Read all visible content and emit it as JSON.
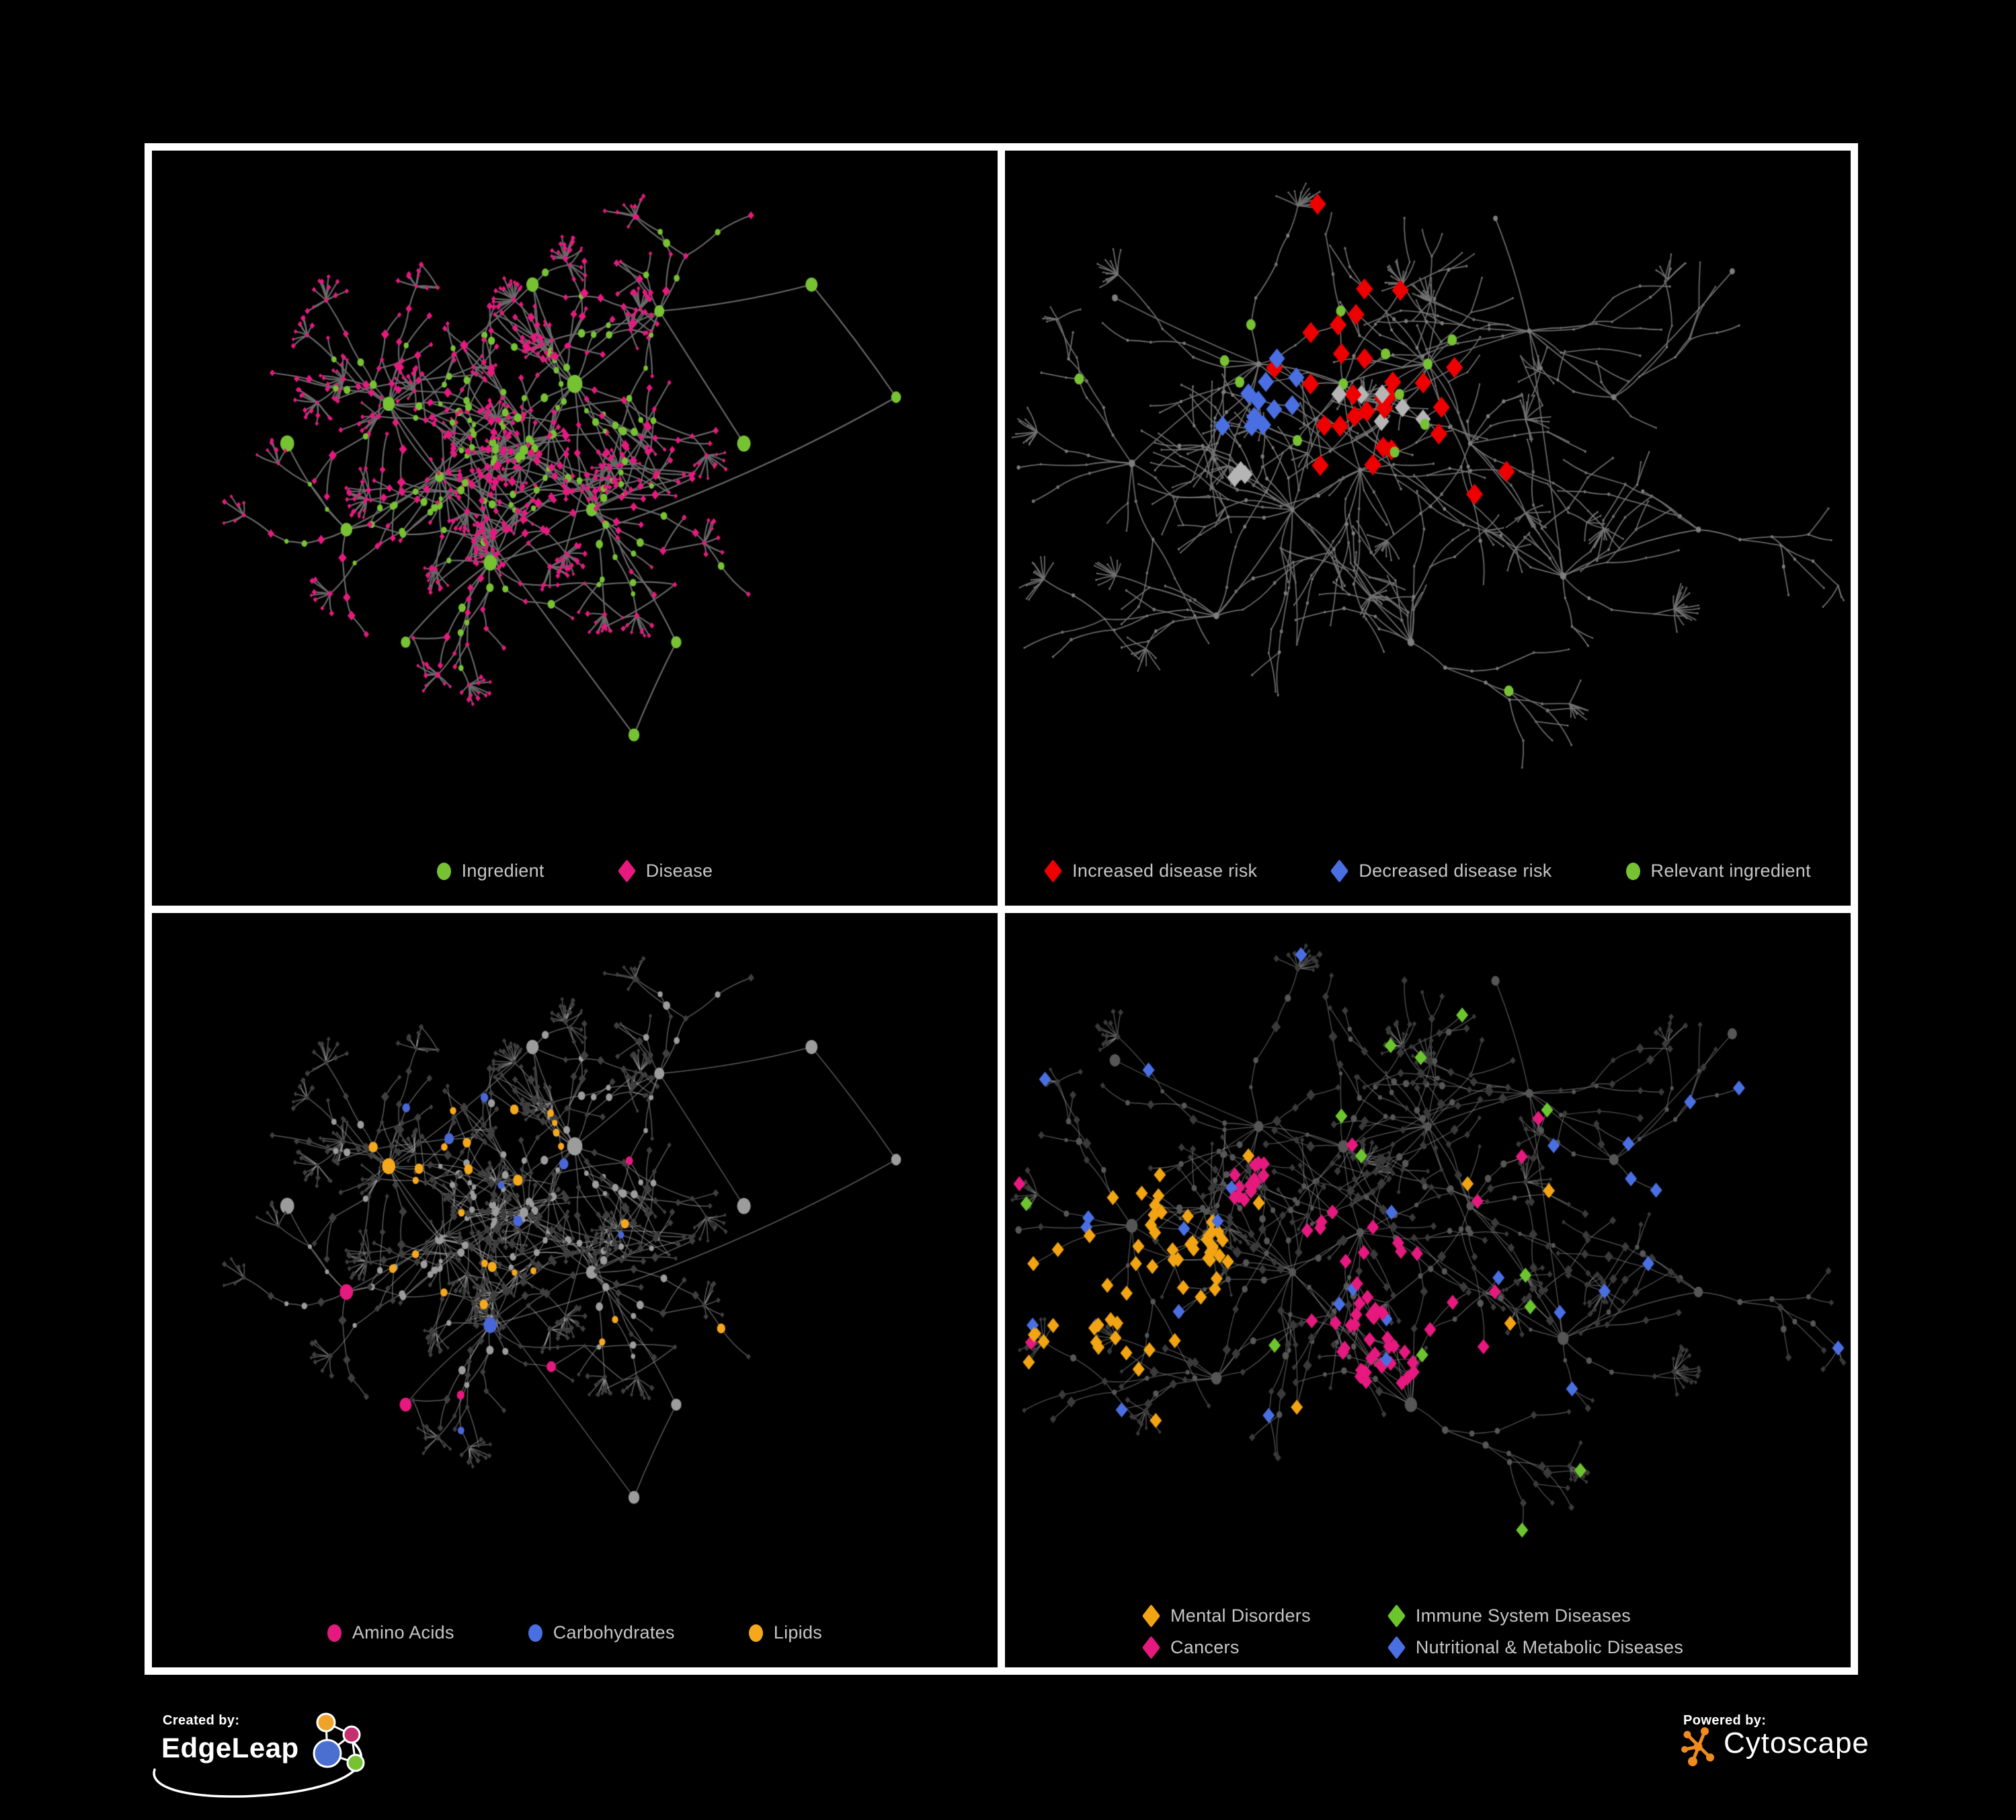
{
  "figure": {
    "background": "#000000",
    "frame_color": "#ffffff",
    "legend_text_color": "#c6c6c6"
  },
  "layouts": {
    "A": {
      "seed": 7,
      "step": 42,
      "branch_min": 5,
      "branch_max": 9,
      "fan_p": 0.2,
      "cross_p": 0.22,
      "hub_boost": 5,
      "budget": 980,
      "hubs": [
        [
          0.44,
          0.43
        ],
        [
          0.34,
          0.47
        ],
        [
          0.5,
          0.33
        ],
        [
          0.4,
          0.6
        ],
        [
          0.28,
          0.36
        ],
        [
          0.52,
          0.52
        ],
        [
          0.23,
          0.55
        ],
        [
          0.6,
          0.22
        ],
        [
          0.45,
          0.18
        ],
        [
          0.7,
          0.42
        ],
        [
          0.62,
          0.72
        ],
        [
          0.3,
          0.72
        ],
        [
          0.16,
          0.42
        ],
        [
          0.78,
          0.18
        ],
        [
          0.88,
          0.35
        ],
        [
          0.57,
          0.86
        ]
      ]
    },
    "B": {
      "seed": 13,
      "step": 46,
      "branch_min": 4,
      "branch_max": 8,
      "fan_p": 0.17,
      "cross_p": 0.14,
      "hub_boost": 3,
      "budget": 900,
      "hubs": [
        [
          0.4,
          0.33
        ],
        [
          0.3,
          0.3
        ],
        [
          0.5,
          0.3
        ],
        [
          0.42,
          0.46
        ],
        [
          0.55,
          0.42
        ],
        [
          0.34,
          0.52
        ],
        [
          0.62,
          0.25
        ],
        [
          0.72,
          0.35
        ],
        [
          0.25,
          0.68
        ],
        [
          0.48,
          0.72
        ],
        [
          0.66,
          0.62
        ],
        [
          0.15,
          0.45
        ],
        [
          0.82,
          0.55
        ],
        [
          0.58,
          0.08
        ],
        [
          0.13,
          0.2
        ],
        [
          0.86,
          0.16
        ]
      ]
    }
  },
  "panels": [
    {
      "name": "ingredient-disease",
      "layout": "A",
      "edge": {
        "color": "#6b6b6b",
        "width": 2.2,
        "alpha": 0.95
      },
      "base": {
        "ingredient": {
          "shape": "circle",
          "color": "#77c232",
          "size_mul": 1.05
        },
        "disease": {
          "shape": "diamond",
          "color": "#e6197f",
          "size_mul": 1.0
        }
      },
      "highlights": [],
      "legend": {
        "columns": 0,
        "items": [
          {
            "label": "Ingredient",
            "shape": "circle",
            "color": "#77c232"
          },
          {
            "label": "Disease",
            "shape": "diamond",
            "color": "#e6197f"
          }
        ]
      }
    },
    {
      "name": "disease-risk",
      "layout": "B",
      "edge": {
        "color": "#747474",
        "width": 1.8,
        "alpha": 0.9
      },
      "base": {
        "ingredient": {
          "shape": "circle",
          "color": "#7d7d7d",
          "size_mul": 0.5
        },
        "disease": {
          "shape": "circle",
          "color": "#6f6f6f",
          "size_mul": 0.45
        }
      },
      "highlights": [
        {
          "target": "disease",
          "shape": "diamond",
          "color": "#ee0000",
          "size": 10.5,
          "max": 34,
          "seed": 21,
          "global_p": 0.004,
          "blobs": [
            [
              0.42,
              0.3,
              0.1,
              0.5
            ],
            [
              0.3,
              0.28,
              0.06,
              0.4
            ],
            [
              0.55,
              0.33,
              0.07,
              0.4
            ],
            [
              0.47,
              0.47,
              0.06,
              0.35
            ],
            [
              0.36,
              0.42,
              0.05,
              0.3
            ],
            [
              0.63,
              0.25,
              0.04,
              0.35
            ],
            [
              0.58,
              0.47,
              0.04,
              0.35
            ],
            [
              0.62,
              0.78,
              0.05,
              0.3
            ],
            [
              0.1,
              0.33,
              0.03,
              0.5
            ],
            [
              0.52,
              0.6,
              0.04,
              0.3
            ]
          ]
        },
        {
          "target": "disease",
          "shape": "diamond",
          "color": "#4a6fe3",
          "size": 10,
          "max": 11,
          "seed": 22,
          "global_p": 0,
          "blobs": [
            [
              0.29,
              0.33,
              0.06,
              0.5
            ],
            [
              0.8,
              0.34,
              0.04,
              1.0
            ]
          ]
        },
        {
          "target": "disease",
          "shape": "diamond",
          "color": "#b5b5b5",
          "size": 9.5,
          "max": 9,
          "seed": 23,
          "global_p": 0.001,
          "blobs": [
            [
              0.24,
              0.26,
              0.05,
              0.35
            ],
            [
              0.44,
              0.37,
              0.05,
              0.22
            ],
            [
              0.52,
              0.42,
              0.04,
              0.25
            ],
            [
              0.3,
              0.47,
              0.04,
              0.3
            ]
          ]
        },
        {
          "target": "ingredient",
          "shape": "circle",
          "color": "#77c232",
          "size": 7,
          "max": 30,
          "seed": 24,
          "global_p": 0.004,
          "blobs": [
            [
              0.35,
              0.3,
              0.1,
              0.4
            ],
            [
              0.5,
              0.33,
              0.09,
              0.35
            ],
            [
              0.24,
              0.14,
              0.06,
              0.35
            ],
            [
              0.52,
              0.44,
              0.06,
              0.3
            ],
            [
              0.78,
              0.36,
              0.05,
              0.35
            ],
            [
              0.12,
              0.35,
              0.04,
              0.4
            ],
            [
              0.56,
              0.78,
              0.04,
              0.35
            ]
          ]
        }
      ],
      "legend": {
        "columns": 0,
        "items": [
          {
            "label": "Increased disease risk",
            "shape": "diamond",
            "color": "#ee0000"
          },
          {
            "label": "Decreased disease risk",
            "shape": "diamond",
            "color": "#4a6fe3"
          },
          {
            "label": "Relevant ingredient",
            "shape": "circle",
            "color": "#77c232"
          }
        ]
      }
    },
    {
      "name": "nutrient-classes",
      "layout": "A",
      "edge": {
        "color": "#b0b0b0",
        "width": 1.5,
        "alpha": 0.5
      },
      "base": {
        "ingredient": {
          "shape": "circle",
          "color": "#9c9c9c",
          "size_mul": 1.05
        },
        "disease": {
          "shape": "diamond",
          "color": "#3f3f3f",
          "size_mul": 1.0
        }
      },
      "highlights": [
        {
          "target": "ingredient",
          "shape": "circle",
          "color": "#f5a81c",
          "size": null,
          "max": 95,
          "seed": 31,
          "global_p": 0.03,
          "blobs": [
            [
              0.35,
              0.2,
              0.1,
              0.8
            ],
            [
              0.3,
              0.4,
              0.08,
              0.5
            ],
            [
              0.4,
              0.54,
              0.06,
              0.6
            ],
            [
              0.46,
              0.3,
              0.06,
              0.4
            ],
            [
              0.7,
              0.54,
              0.07,
              0.4
            ],
            [
              0.55,
              0.62,
              0.05,
              0.4
            ]
          ]
        },
        {
          "target": "ingredient",
          "shape": "circle",
          "color": "#e6197f",
          "size": null,
          "max": 40,
          "seed": 32,
          "global_p": 0.03,
          "blobs": [
            [
              0.22,
              0.74,
              0.1,
              0.45
            ],
            [
              0.52,
              0.74,
              0.09,
              0.45
            ],
            [
              0.12,
              0.52,
              0.06,
              0.35
            ],
            [
              0.8,
              0.3,
              0.05,
              0.4
            ],
            [
              0.42,
              0.06,
              0.04,
              0.5
            ]
          ]
        },
        {
          "target": "ingredient",
          "shape": "circle",
          "color": "#4a67d8",
          "size": null,
          "max": 22,
          "seed": 33,
          "global_p": 0.02,
          "blobs": [
            [
              0.36,
              0.24,
              0.07,
              0.28
            ],
            [
              0.44,
              0.4,
              0.05,
              0.2
            ],
            [
              0.05,
              0.3,
              0.03,
              0.6
            ]
          ]
        }
      ],
      "legend": {
        "columns": 0,
        "items": [
          {
            "label": "Amino Acids",
            "shape": "circle",
            "color": "#e6197f"
          },
          {
            "label": "Carbohydrates",
            "shape": "circle",
            "color": "#4a6fe3"
          },
          {
            "label": "Lipids",
            "shape": "circle",
            "color": "#f5a81c"
          }
        ]
      }
    },
    {
      "name": "disease-classes",
      "layout": "B",
      "edge": {
        "color": "#9a9a9a",
        "width": 1.4,
        "alpha": 0.5
      },
      "base": {
        "ingredient": {
          "shape": "circle",
          "color": "#565656",
          "size_mul": 0.9
        },
        "disease": {
          "shape": "diamond",
          "color": "#3a3a3a",
          "size_mul": 1.1
        }
      },
      "highlights": [
        {
          "target": "disease",
          "shape": "diamond",
          "color": "#f2a413",
          "size": 7.5,
          "max": 110,
          "seed": 41,
          "global_p": 0.015,
          "blobs": [
            [
              0.15,
              0.52,
              0.12,
              0.85
            ],
            [
              0.09,
              0.62,
              0.07,
              0.6
            ],
            [
              0.28,
              0.08,
              0.05,
              0.5
            ],
            [
              0.57,
              0.05,
              0.04,
              0.5
            ],
            [
              0.33,
              0.7,
              0.04,
              0.3
            ]
          ]
        },
        {
          "target": "disease",
          "shape": "diamond",
          "color": "#e6197f",
          "size": 7.5,
          "max": 80,
          "seed": 42,
          "global_p": 0.015,
          "blobs": [
            [
              0.45,
              0.58,
              0.09,
              0.7
            ],
            [
              0.53,
              0.65,
              0.07,
              0.5
            ],
            [
              0.4,
              0.48,
              0.05,
              0.4
            ],
            [
              0.94,
              0.24,
              0.05,
              0.6
            ],
            [
              0.3,
              0.4,
              0.04,
              0.3
            ]
          ]
        },
        {
          "target": "disease",
          "shape": "diamond",
          "color": "#4a6fe3",
          "size": 7.5,
          "max": 110,
          "seed": 43,
          "global_p": 0.025,
          "blobs": [
            [
              0.62,
              0.71,
              0.07,
              0.75
            ],
            [
              0.8,
              0.3,
              0.09,
              0.5
            ],
            [
              0.7,
              0.14,
              0.07,
              0.45
            ],
            [
              0.86,
              0.46,
              0.06,
              0.45
            ],
            [
              0.2,
              0.2,
              0.05,
              0.3
            ],
            [
              0.36,
              0.86,
              0.05,
              0.35
            ],
            [
              0.9,
              0.7,
              0.04,
              0.4
            ]
          ]
        },
        {
          "target": "disease",
          "shape": "diamond",
          "color": "#6dc52e",
          "size": 7.5,
          "max": 14,
          "seed": 44,
          "global_p": 0.02,
          "blobs": []
        }
      ],
      "legend": {
        "columns": 2,
        "items": [
          {
            "label": "Mental Disorders",
            "shape": "diamond",
            "color": "#f2a413"
          },
          {
            "label": "Immune System Diseases",
            "shape": "diamond",
            "color": "#6dc52e"
          },
          {
            "label": "Cancers",
            "shape": "diamond",
            "color": "#e6197f"
          },
          {
            "label": "Nutritional & Metabolic Diseases",
            "shape": "diamond",
            "color": "#4a6fe3"
          }
        ]
      }
    }
  ],
  "footer": {
    "created_by_label": "Created by:",
    "edgeleap_name": "EdgeLeap",
    "powered_by_label": "Powered by:",
    "cytoscape_name": "Cytoscape",
    "edgeleap_colors": {
      "orange": "#f0a32a",
      "magenta": "#c42f6d",
      "blue": "#4a6fd0",
      "green": "#77c232"
    },
    "cytoscape_color": "#ef8b1f"
  }
}
